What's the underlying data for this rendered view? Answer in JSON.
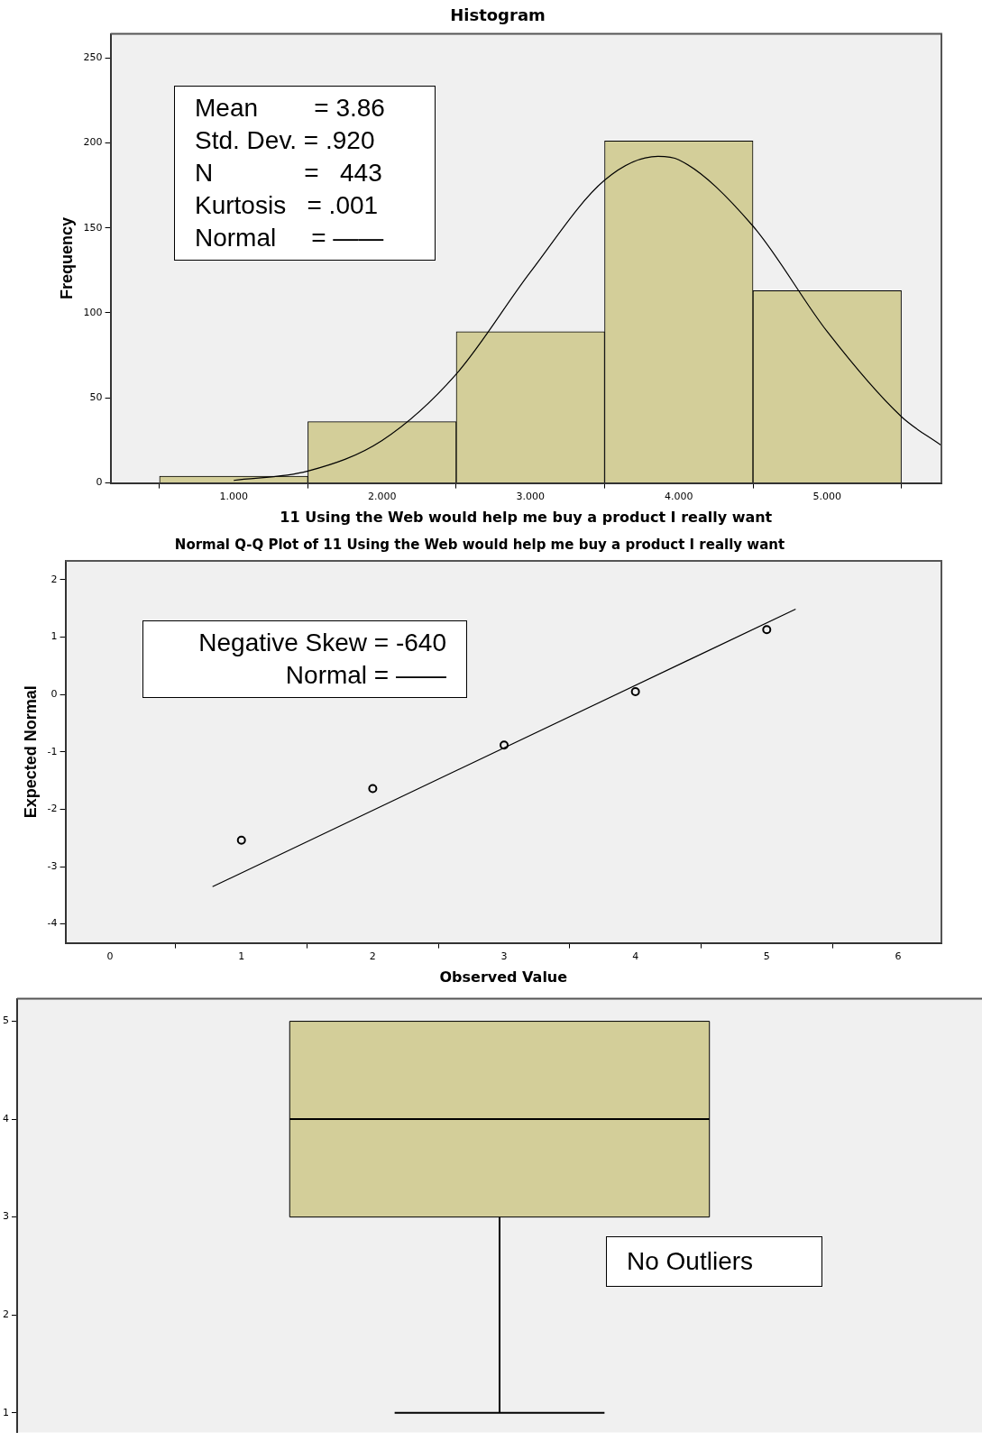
{
  "chart_data": [
    {
      "type": "histogram",
      "title": "Histogram",
      "xlabel": "11 Using the Web would help me buy a product I really want",
      "ylabel": "Frequency",
      "bins": [
        0.5,
        1.5,
        2.5,
        3.5,
        4.5,
        5.5
      ],
      "values": [
        4,
        36,
        89,
        201,
        113
      ],
      "color": "#d3ce99",
      "xlim": [
        0.17,
        5.77
      ],
      "xticks": [
        {
          "value": 1,
          "label": "1.000"
        },
        {
          "value": 2,
          "label": "2.000"
        },
        {
          "value": 3,
          "label": "3.000"
        },
        {
          "value": 4,
          "label": "4.000"
        },
        {
          "value": 5,
          "label": "5.000"
        }
      ],
      "ylim": [
        0,
        264
      ],
      "yticks": [
        0,
        50,
        100,
        150,
        200,
        250
      ],
      "grid": false,
      "legend": false,
      "series": [
        {
          "type": "line",
          "color": "#000000",
          "x": [
            1,
            1.5,
            2,
            2.5,
            3,
            3.5,
            3.86,
            4,
            4.5,
            5,
            5.5,
            5.77
          ],
          "values": [
            1.5,
            7,
            25,
            64,
            124,
            178,
            192,
            190,
            151,
            89,
            39,
            22
          ]
        }
      ],
      "annotations": [
        "Mean        = 3.86",
        "Std. Dev. = .920",
        "N             =   443",
        "Kurtosis   = .001",
        "Normal     = ——"
      ]
    },
    {
      "type": "scatter",
      "title": "Normal Q-Q Plot of 11 Using the Web would help me buy a product I really want",
      "xlabel": "Observed Value",
      "ylabel": "Expected Normal",
      "xlim": [
        -0.34,
        6.33
      ],
      "xticks": [
        0,
        1,
        2,
        3,
        4,
        5,
        6
      ],
      "ylim": [
        -4.33,
        2.33
      ],
      "yticks": [
        -4,
        -3,
        -2,
        -1,
        0,
        1,
        2
      ],
      "grid": false,
      "legend": false,
      "marker": "circle",
      "series": [
        {
          "x": [
            1,
            2,
            3,
            4,
            5
          ],
          "values": [
            -2.54,
            -1.64,
            -0.88,
            0.05,
            1.13
          ],
          "color": "#000000"
        },
        {
          "type": "line",
          "x": [
            0.78,
            5.22
          ],
          "values": [
            -3.35,
            1.49
          ],
          "color": "#000000",
          "marker": "none"
        }
      ],
      "annotations": [
        "Negative Skew = -640",
        "Normal = ——"
      ]
    },
    {
      "type": "box",
      "categories": [
        null
      ],
      "boxes": [
        {
          "low": 1,
          "q1": 3,
          "median": 4,
          "q3": 5,
          "high": 5
        }
      ],
      "color": "#d3ce99",
      "ylim": [
        0.8,
        5.23
      ],
      "yticks": [
        1,
        2,
        3,
        4,
        5
      ],
      "grid": false,
      "legend": false,
      "tick_labels": "y",
      "annotations": [
        "No Outliers"
      ]
    }
  ]
}
